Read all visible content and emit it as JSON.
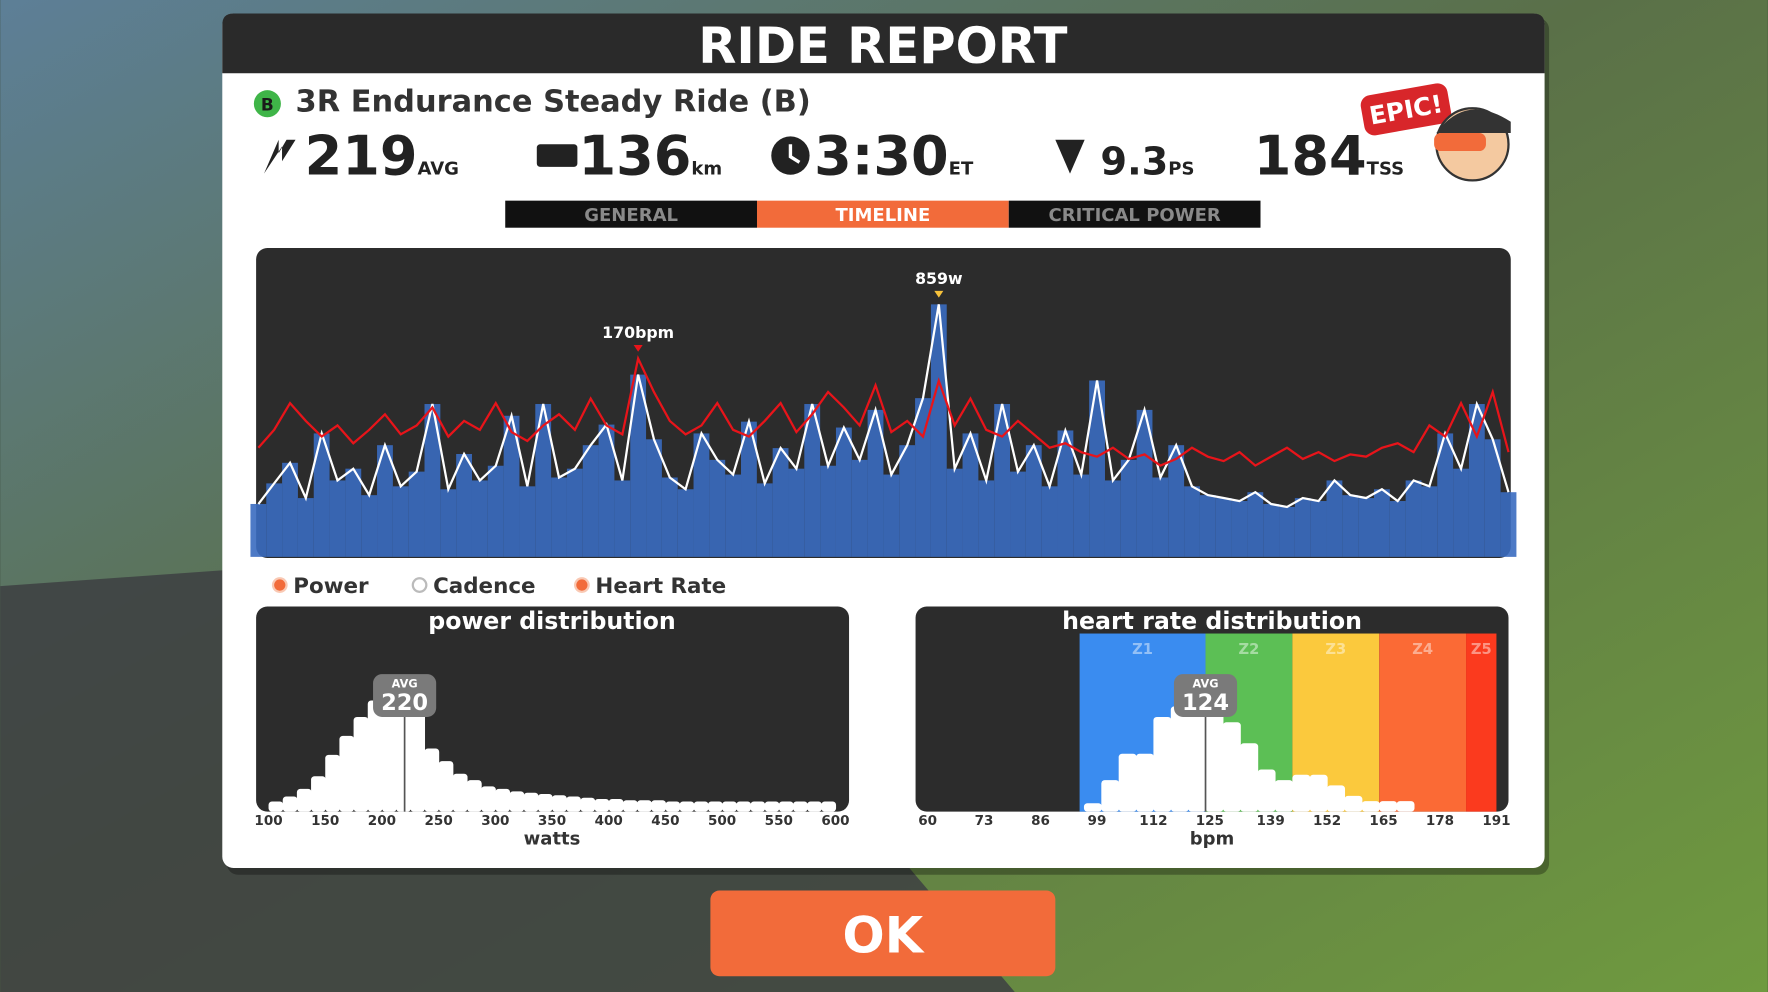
{
  "header": {
    "title": "RIDE REPORT"
  },
  "ride": {
    "badge": "B",
    "name": "3R Endurance Steady Ride (B)",
    "badge_text": "EPIC!"
  },
  "stats": [
    {
      "value": 219,
      "unit": "AVG"
    },
    {
      "value": 136,
      "unit": "km"
    },
    {
      "value": "3:30",
      "unit": "ET"
    },
    {
      "value": 9.3,
      "unit": "PS"
    },
    {
      "value": 184,
      "unit": "TSS"
    }
  ],
  "tabs": {
    "items": [
      "GENERAL",
      "TIMELINE",
      "CRITICAL POWER"
    ],
    "active": 1
  },
  "chart_data": [
    {
      "type": "timeline",
      "series": [
        {
          "color": "#ffffff",
          "fill": "#3a6cc0",
          "peak_label": "859w",
          "values": [
            180,
            250,
            320,
            200,
            420,
            260,
            300,
            210,
            380,
            240,
            290,
            520,
            230,
            350,
            260,
            310,
            480,
            240,
            520,
            270,
            300,
            380,
            450,
            260,
            620,
            400,
            270,
            230,
            420,
            330,
            280,
            460,
            250,
            370,
            300,
            520,
            310,
            440,
            330,
            500,
            280,
            380,
            540,
            859,
            300,
            420,
            260,
            520,
            290,
            380,
            240,
            430,
            280,
            600,
            260,
            330,
            500,
            270,
            380,
            240,
            210,
            200,
            190,
            220,
            180,
            170,
            200,
            190,
            260,
            210,
            200,
            230,
            190,
            260,
            240,
            420,
            300,
            520,
            400,
            220
          ]
        },
        {
          "color": "#e8141a",
          "peak_label": "170bpm",
          "values": [
            130,
            138,
            150,
            142,
            135,
            140,
            132,
            138,
            145,
            136,
            140,
            148,
            135,
            142,
            138,
            150,
            137,
            133,
            140,
            145,
            138,
            152,
            140,
            136,
            170,
            155,
            142,
            136,
            140,
            150,
            138,
            135,
            142,
            150,
            137,
            145,
            155,
            148,
            140,
            158,
            137,
            142,
            135,
            160,
            140,
            152,
            138,
            135,
            142,
            136,
            130,
            132,
            128,
            126,
            130,
            125,
            127,
            122,
            125,
            130,
            126,
            124,
            128,
            122,
            126,
            130,
            125,
            128,
            124,
            127,
            126,
            130,
            132,
            128,
            140,
            135,
            150,
            135,
            155,
            128
          ]
        }
      ],
      "legend": [
        {
          "name": "Power",
          "color": "#f26b3a"
        },
        {
          "name": "Cadence",
          "color": "#ffffff"
        },
        {
          "name": "Heart Rate",
          "color": "#f26b3a"
        }
      ]
    },
    {
      "type": "histogram",
      "title": "power distribution",
      "xlabel": "watts",
      "color": "#ffffff",
      "bins": [
        100,
        112.5,
        125,
        137.5,
        150,
        162.5,
        175,
        187.5,
        200,
        212.5,
        225,
        237.5,
        250,
        262.5,
        275,
        287.5,
        300,
        312.5,
        325,
        337.5,
        350,
        362.5,
        375,
        387.5,
        400,
        412.5,
        425,
        437.5,
        450,
        462.5,
        475,
        487.5,
        500,
        512.5,
        525,
        537.5,
        550,
        562.5,
        575,
        587.5,
        600
      ],
      "values": [
        8,
        12,
        18,
        28,
        45,
        60,
        75,
        88,
        100,
        95,
        80,
        50,
        40,
        30,
        25,
        20,
        18,
        16,
        15,
        14,
        13,
        12,
        11,
        10,
        10,
        9,
        9,
        9,
        8,
        8,
        8,
        8,
        8,
        8,
        8,
        8,
        8,
        8,
        8,
        8
      ],
      "xlim": [
        95,
        605
      ],
      "xticks": [
        100,
        150,
        200,
        250,
        300,
        350,
        400,
        450,
        500,
        550,
        600
      ],
      "avg": 220,
      "avg_label": "AVG"
    },
    {
      "type": "histogram",
      "title": "heart rate distribution",
      "xlabel": "bpm",
      "color": "#ffffff",
      "bins": [
        96,
        100,
        104,
        108,
        112,
        116,
        120,
        124,
        128,
        132,
        136,
        140,
        144,
        148,
        152,
        156,
        160,
        164,
        168,
        172
      ],
      "values": [
        8,
        30,
        55,
        55,
        90,
        100,
        120,
        100,
        85,
        65,
        40,
        30,
        35,
        35,
        25,
        15,
        10,
        10,
        10
      ],
      "xlim": [
        58,
        193
      ],
      "xticks": [
        60,
        73,
        86,
        99,
        112,
        125,
        139,
        152,
        165,
        178,
        191
      ],
      "avg": 124,
      "avg_label": "AVG",
      "zones": [
        {
          "name": "Z1",
          "color": "#3a8cf0",
          "from": 95,
          "to": 124
        },
        {
          "name": "Z2",
          "color": "#5cbf55",
          "from": 124,
          "to": 144
        },
        {
          "name": "Z3",
          "color": "#fbc93d",
          "from": 144,
          "to": 164
        },
        {
          "name": "Z4",
          "color": "#fb6a35",
          "from": 164,
          "to": 184
        },
        {
          "name": "Z5",
          "color": "#fb3a1e",
          "from": 184,
          "to": 191
        }
      ]
    }
  ],
  "button": {
    "label": "OK"
  }
}
